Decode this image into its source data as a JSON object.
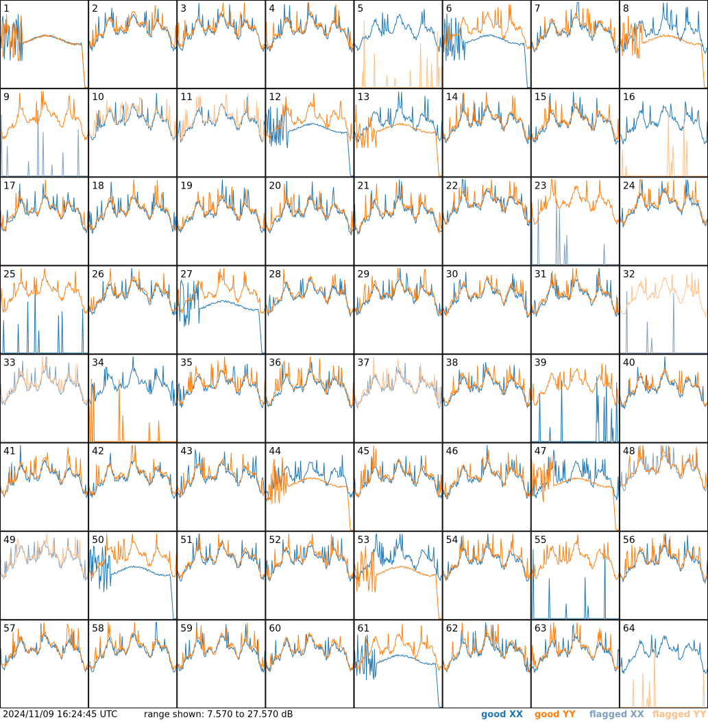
{
  "footer": {
    "timestamp": "2024/11/09 16:24:45 UTC",
    "range_text": "range shown: 7.570 to 27.570 dB"
  },
  "colors": {
    "good_xx": "#1f77b4",
    "good_yy": "#ff7f0e",
    "flagged_xx": "#7f9fbf",
    "flagged_yy": "#ffbf87",
    "frame": "#000000"
  },
  "chart_data": {
    "type": "line",
    "layout": "small-multiples 8x8",
    "xlabel": "",
    "ylabel": "",
    "ylim": [
      7.57,
      27.57
    ],
    "units": "dB",
    "legend": {
      "placement": "bottom-right",
      "entries": [
        "good XX",
        "good YY",
        "flagged XX",
        "flagged YY"
      ]
    },
    "panels": [
      {
        "id": "1",
        "xx": "D",
        "yy": "D"
      },
      {
        "id": "2",
        "xx": "N",
        "yy": "N"
      },
      {
        "id": "3",
        "xx": "N",
        "yy": "N"
      },
      {
        "id": "4",
        "xx": "N",
        "yy": "N"
      },
      {
        "id": "5",
        "xx": "N",
        "yy": "Z",
        "yyFlag": true
      },
      {
        "id": "6",
        "xx": "D",
        "yy": "N"
      },
      {
        "id": "7",
        "xx": "N",
        "yy": "N"
      },
      {
        "id": "8",
        "xx": "N",
        "yy": "D"
      },
      {
        "id": "9",
        "xx": "Z",
        "yy": "N",
        "xxFlag": true
      },
      {
        "id": "10",
        "xx": "N",
        "yy": "N",
        "yyFlag": true
      },
      {
        "id": "11",
        "xx": "N",
        "yy": "N",
        "yyFlag": true
      },
      {
        "id": "12",
        "xx": "D",
        "yy": "N"
      },
      {
        "id": "13",
        "xx": "N",
        "yy": "D"
      },
      {
        "id": "14",
        "xx": "N",
        "yy": "N"
      },
      {
        "id": "15",
        "xx": "N",
        "yy": "N"
      },
      {
        "id": "16",
        "xx": "N",
        "yy": "Z",
        "yyFlag": true
      },
      {
        "id": "17",
        "xx": "N",
        "yy": "N"
      },
      {
        "id": "18",
        "xx": "N",
        "yy": "N"
      },
      {
        "id": "19",
        "xx": "N",
        "yy": "N"
      },
      {
        "id": "20",
        "xx": "N",
        "yy": "N"
      },
      {
        "id": "21",
        "xx": "N",
        "yy": "N"
      },
      {
        "id": "22",
        "xx": "N",
        "yy": "N"
      },
      {
        "id": "23",
        "xx": "Z",
        "yy": "N",
        "xxFlag": true
      },
      {
        "id": "24",
        "xx": "N",
        "yy": "N"
      },
      {
        "id": "25",
        "xx": "Z",
        "yy": "N"
      },
      {
        "id": "26",
        "xx": "N",
        "yy": "N"
      },
      {
        "id": "27",
        "xx": "D",
        "yy": "N"
      },
      {
        "id": "28",
        "xx": "N",
        "yy": "N"
      },
      {
        "id": "29",
        "xx": "N",
        "yy": "N"
      },
      {
        "id": "30",
        "xx": "N",
        "yy": "N"
      },
      {
        "id": "31",
        "xx": "N",
        "yy": "N"
      },
      {
        "id": "32",
        "xx": "Z",
        "yy": "N",
        "xxFlag": true,
        "yyFlag": true
      },
      {
        "id": "33",
        "xx": "N",
        "yy": "N",
        "xxFlag": true,
        "yyFlag": true
      },
      {
        "id": "34",
        "xx": "N",
        "yy": "Z"
      },
      {
        "id": "35",
        "xx": "N",
        "yy": "N"
      },
      {
        "id": "36",
        "xx": "N",
        "yy": "N"
      },
      {
        "id": "37",
        "xx": "N",
        "yy": "N",
        "xxFlag": true,
        "yyFlag": true
      },
      {
        "id": "38",
        "xx": "N",
        "yy": "N"
      },
      {
        "id": "39",
        "xx": "Z",
        "yy": "N"
      },
      {
        "id": "40",
        "xx": "N",
        "yy": "N"
      },
      {
        "id": "41",
        "xx": "N",
        "yy": "N"
      },
      {
        "id": "42",
        "xx": "N",
        "yy": "N"
      },
      {
        "id": "43",
        "xx": "N",
        "yy": "N"
      },
      {
        "id": "44",
        "xx": "N",
        "yy": "D"
      },
      {
        "id": "45",
        "xx": "N",
        "yy": "N"
      },
      {
        "id": "46",
        "xx": "N",
        "yy": "N"
      },
      {
        "id": "47",
        "xx": "N",
        "yy": "D"
      },
      {
        "id": "48",
        "xx": "N",
        "yy": "N",
        "xxFlag": true
      },
      {
        "id": "49",
        "xx": "N",
        "yy": "N",
        "xxFlag": true,
        "yyFlag": true
      },
      {
        "id": "50",
        "xx": "D",
        "yy": "N"
      },
      {
        "id": "51",
        "xx": "N",
        "yy": "N"
      },
      {
        "id": "52",
        "xx": "N",
        "yy": "N"
      },
      {
        "id": "53",
        "xx": "N",
        "yy": "D"
      },
      {
        "id": "54",
        "xx": "N",
        "yy": "N"
      },
      {
        "id": "55",
        "xx": "Z",
        "yy": "N"
      },
      {
        "id": "56",
        "xx": "N",
        "yy": "N"
      },
      {
        "id": "57",
        "xx": "N",
        "yy": "N"
      },
      {
        "id": "58",
        "xx": "N",
        "yy": "N"
      },
      {
        "id": "59",
        "xx": "N",
        "yy": "N"
      },
      {
        "id": "60",
        "xx": "N",
        "yy": "N"
      },
      {
        "id": "61",
        "xx": "D",
        "yy": "N"
      },
      {
        "id": "62",
        "xx": "N",
        "yy": "N"
      },
      {
        "id": "63",
        "xx": "N",
        "yy": "N"
      },
      {
        "id": "64",
        "xx": "N",
        "yy": "Z",
        "yyFlag": true
      }
    ]
  }
}
